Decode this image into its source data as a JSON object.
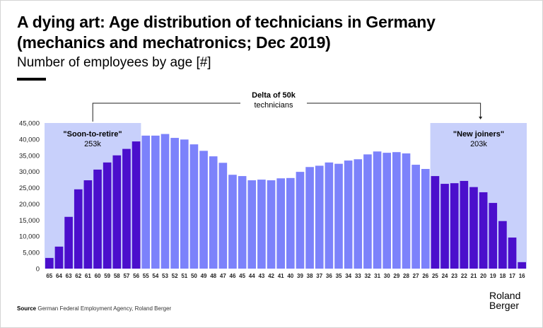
{
  "header": {
    "title": "A dying art: Age distribution of technicians in Germany (mechanics and mechatronics; Dec 2019)",
    "subtitle": "Number of employees by age [#]"
  },
  "annotations": {
    "delta_title": "Delta of 50k",
    "delta_sub": "technicians",
    "left_group_label": "\"Soon-to-retire\"",
    "left_group_value": "253k",
    "right_group_label": "\"New joiners\"",
    "right_group_value": "203k"
  },
  "footer": {
    "source_label": "Source",
    "source_text": "German Federal Employment Agency, Roland Berger",
    "logo_line1": "Roland",
    "logo_line2": "Berger"
  },
  "colors": {
    "dark_bar": "#4b0fcc",
    "light_bar": "#7c82fb",
    "highlight_bg": "#c8d0fb"
  },
  "chart_data": {
    "type": "bar",
    "title": "A dying art: Age distribution of technicians in Germany (mechanics and mechatronics; Dec 2019)",
    "subtitle": "Number of employees by age [#]",
    "xlabel": "",
    "ylabel": "",
    "ylim": [
      0,
      45000
    ],
    "yticks": [
      0,
      5000,
      10000,
      15000,
      20000,
      25000,
      30000,
      35000,
      40000,
      45000
    ],
    "ytick_labels": [
      "0",
      "5,000",
      "10,000",
      "15,000",
      "20,000",
      "25,000",
      "30,000",
      "35,000",
      "40,000",
      "45,000"
    ],
    "grid": false,
    "legend": "none",
    "categories": [
      "65",
      "64",
      "63",
      "62",
      "61",
      "60",
      "59",
      "58",
      "57",
      "56",
      "55",
      "54",
      "53",
      "52",
      "51",
      "50",
      "49",
      "48",
      "47",
      "46",
      "45",
      "44",
      "43",
      "42",
      "41",
      "40",
      "39",
      "38",
      "37",
      "36",
      "35",
      "34",
      "33",
      "32",
      "31",
      "30",
      "29",
      "28",
      "27",
      "26",
      "25",
      "24",
      "23",
      "22",
      "21",
      "20",
      "19",
      "18",
      "17",
      "16"
    ],
    "values": [
      3300,
      6800,
      16000,
      24500,
      27300,
      30600,
      32800,
      35000,
      37000,
      39300,
      41100,
      41100,
      41600,
      40400,
      39900,
      38400,
      36400,
      34700,
      32700,
      29000,
      28600,
      27300,
      27500,
      27300,
      27900,
      28000,
      29900,
      31400,
      31800,
      32800,
      32400,
      33400,
      33800,
      35300,
      36200,
      35800,
      36000,
      35600,
      32100,
      30800,
      28600,
      26200,
      26400,
      27100,
      25200,
      23600,
      20300,
      14700,
      9600,
      2000
    ],
    "highlight_groups": [
      {
        "name": "Soon-to-retire",
        "from": "65",
        "to": "56",
        "total": "253k"
      },
      {
        "name": "New joiners",
        "from": "25",
        "to": "16",
        "total": "203k"
      }
    ],
    "annotation": "Delta of 50k technicians"
  }
}
